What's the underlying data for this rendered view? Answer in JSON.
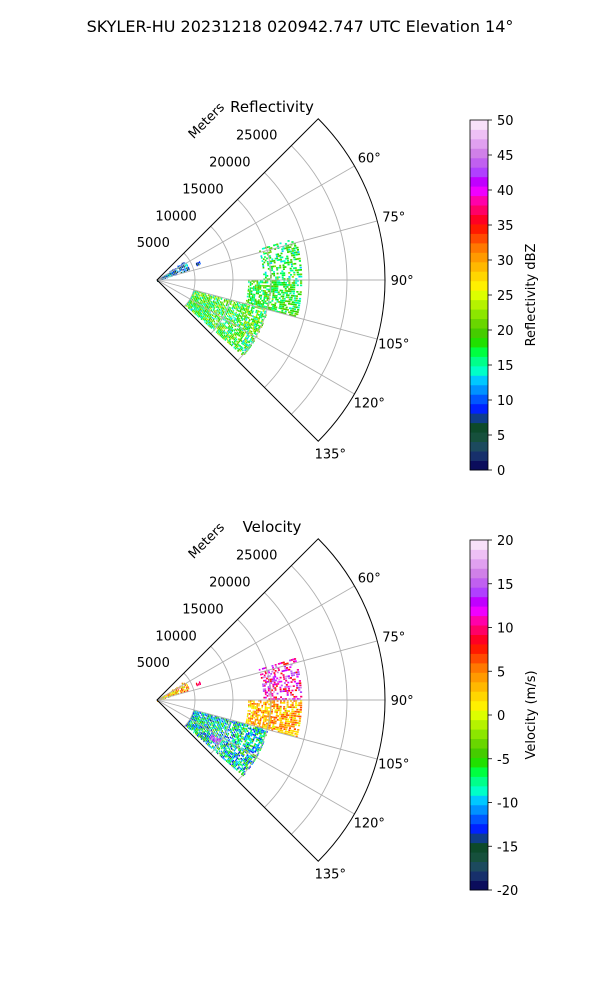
{
  "figure": {
    "suptitle": "SKYLER-HU  20231218  020942.747 UTC Elevation 14°"
  },
  "chart_data": [
    {
      "type": "heatmap",
      "projection": "polar-sector",
      "title": "Reflectivity",
      "radial_label": "Meters",
      "radial_ticks": [
        5000,
        10000,
        15000,
        20000,
        25000
      ],
      "radial_range": [
        0,
        30000
      ],
      "azimuth_ticks": [
        "60°",
        "75°",
        "90°",
        "105°",
        "120°",
        "135°"
      ],
      "azimuth_tick_values": [
        60,
        75,
        90,
        105,
        120,
        135
      ],
      "azimuth_range": [
        45,
        135
      ],
      "grid": true,
      "colorbar": {
        "label": "Reflectivity dBZ",
        "range": [
          0,
          50
        ],
        "ticks": [
          0,
          5,
          10,
          15,
          20,
          25,
          30,
          35,
          40,
          45,
          50
        ],
        "colors": [
          "#0b0d5c",
          "#17306b",
          "#1c4a5e",
          "#16503c",
          "#0d4a2a",
          "#0f3d8a",
          "#0022ff",
          "#0057ff",
          "#0092ff",
          "#00c8ff",
          "#00ffc8",
          "#00ff8a",
          "#00ff40",
          "#21e000",
          "#45cc00",
          "#69d600",
          "#8ce600",
          "#b5f200",
          "#dcff00",
          "#fff000",
          "#ffd600",
          "#ffb800",
          "#ff9a00",
          "#ff7800",
          "#ff4a00",
          "#ff1a00",
          "#ff0022",
          "#ff0066",
          "#ff00aa",
          "#f000ff",
          "#c000ff",
          "#b040ff",
          "#c060f0",
          "#d080e8",
          "#e0a0f0",
          "#eec0f5",
          "#f8e0fa"
        ]
      },
      "echo_regions": [
        {
          "name": "near-range",
          "az": [
            55,
            72
          ],
          "range": [
            0,
            4500
          ],
          "value_range": [
            2,
            15
          ],
          "density": 0.35
        },
        {
          "name": "isolated-cell",
          "az": [
            66,
            69
          ],
          "range": [
            5600,
            6200
          ],
          "value_range": [
            5,
            10
          ],
          "density": 0.8
        },
        {
          "name": "north-cluster",
          "az": [
            73,
            90
          ],
          "range": [
            14000,
            19000
          ],
          "value_range": [
            13,
            22
          ],
          "density": 0.45
        },
        {
          "name": "east-band",
          "az": [
            90,
            105
          ],
          "range": [
            12000,
            19000
          ],
          "value_range": [
            14,
            22
          ],
          "density": 0.7
        },
        {
          "name": "south-mass",
          "az": [
            105,
            132
          ],
          "range": [
            5000,
            15000
          ],
          "value_range": [
            13,
            24
          ],
          "density": 0.75
        }
      ]
    },
    {
      "type": "heatmap",
      "projection": "polar-sector",
      "title": "Velocity",
      "radial_label": "Meters",
      "radial_ticks": [
        5000,
        10000,
        15000,
        20000,
        25000
      ],
      "radial_range": [
        0,
        30000
      ],
      "azimuth_ticks": [
        "60°",
        "75°",
        "90°",
        "105°",
        "120°",
        "135°"
      ],
      "azimuth_tick_values": [
        60,
        75,
        90,
        105,
        120,
        135
      ],
      "azimuth_range": [
        45,
        135
      ],
      "grid": true,
      "colorbar": {
        "label": "Velocity (m/s)",
        "range": [
          -20,
          20
        ],
        "ticks": [
          -20,
          -15,
          -10,
          -5,
          0,
          5,
          10,
          15,
          20
        ],
        "colors": [
          "#0b0d5c",
          "#17306b",
          "#1c4a5e",
          "#16503c",
          "#0d4a2a",
          "#0f3d8a",
          "#0022ff",
          "#0057ff",
          "#0092ff",
          "#00c8ff",
          "#00ffc8",
          "#00ff8a",
          "#00ff40",
          "#21e000",
          "#45cc00",
          "#69d600",
          "#8ce600",
          "#b5f200",
          "#dcff00",
          "#fff000",
          "#ffd600",
          "#ffb800",
          "#ff9a00",
          "#ff7800",
          "#ff4a00",
          "#ff1a00",
          "#ff0022",
          "#ff0066",
          "#ff00aa",
          "#f000ff",
          "#c000ff",
          "#b040ff",
          "#c060f0",
          "#d080e8",
          "#e0a0f0",
          "#eec0f5",
          "#f8e0fa"
        ]
      },
      "echo_regions": [
        {
          "name": "near-range",
          "az": [
            55,
            72
          ],
          "range": [
            0,
            4500
          ],
          "value_range": [
            -2,
            8
          ],
          "density": 0.35
        },
        {
          "name": "isolated-cell",
          "az": [
            66,
            69
          ],
          "range": [
            5600,
            6200
          ],
          "value_range": [
            8,
            11
          ],
          "density": 0.8
        },
        {
          "name": "north-cluster",
          "az": [
            73,
            90
          ],
          "range": [
            14000,
            19000
          ],
          "value_range": [
            7,
            17
          ],
          "density": 0.45
        },
        {
          "name": "east-band",
          "az": [
            90,
            105
          ],
          "range": [
            12000,
            19000
          ],
          "value_range": [
            0,
            7
          ],
          "density": 0.7
        },
        {
          "name": "south-mass",
          "az": [
            105,
            132
          ],
          "range": [
            5000,
            15000
          ],
          "value_range": [
            -14,
            -3
          ],
          "density": 0.75
        },
        {
          "name": "south-tip",
          "az": [
            122,
            126
          ],
          "range": [
            8500,
            10000
          ],
          "value_range": [
            12,
            17
          ],
          "density": 0.8
        }
      ]
    }
  ]
}
